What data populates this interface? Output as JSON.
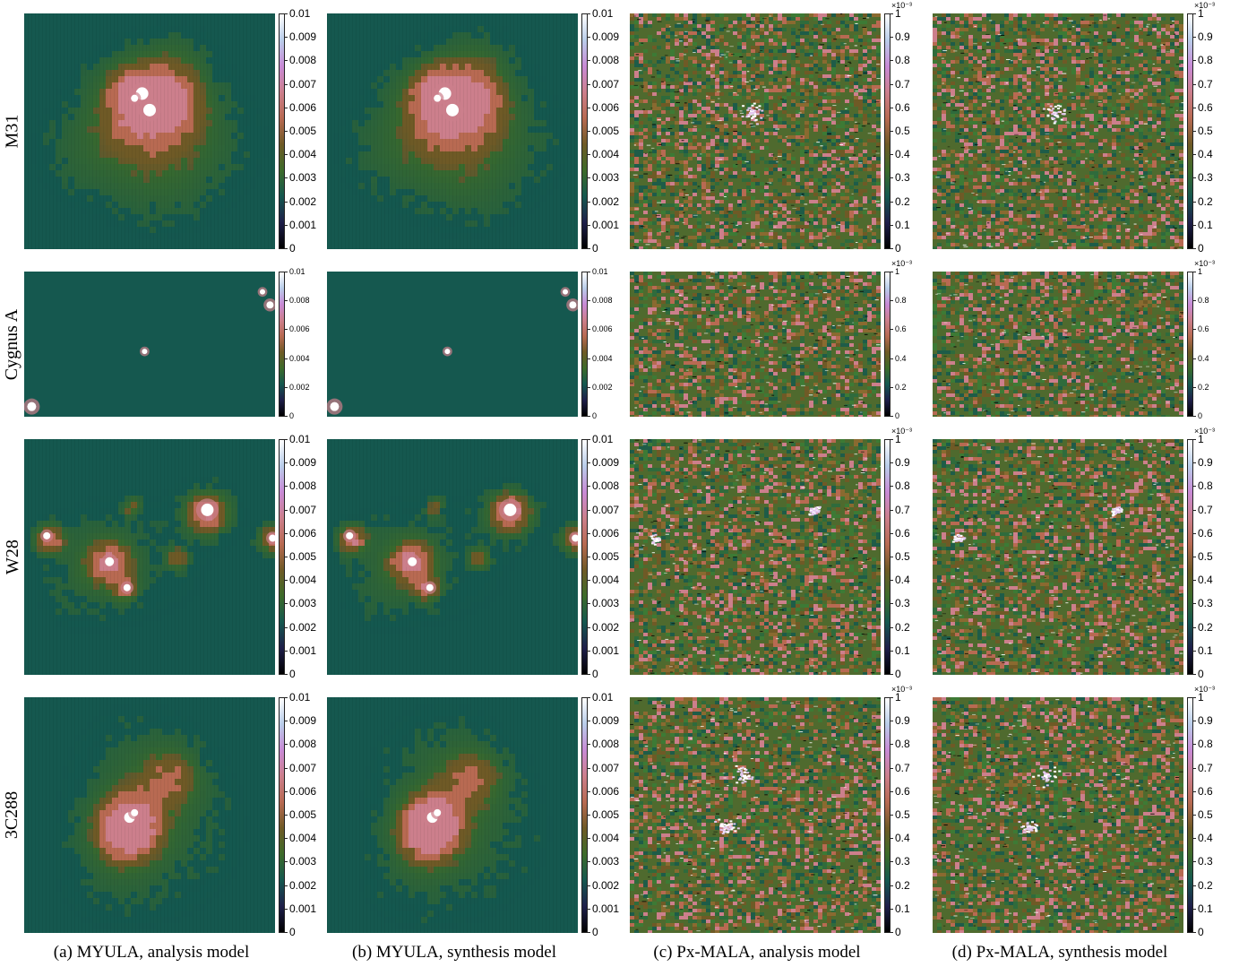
{
  "rows": [
    {
      "label": "M31",
      "maps": [
        "myula-m31",
        "myula-m31",
        "noise-m31",
        "noise-m31"
      ]
    },
    {
      "label": "Cygnus A",
      "maps": [
        "myula-cyg",
        "myula-cyg",
        "noise-plain",
        "noise-plain"
      ]
    },
    {
      "label": "W28",
      "maps": [
        "myula-w28",
        "myula-w28",
        "noise-w28",
        "noise-w28"
      ]
    },
    {
      "label": "3C288",
      "maps": [
        "myula-3c",
        "myula-3c",
        "noise-3c",
        "noise-3c"
      ]
    }
  ],
  "captions": [
    "(a) MYULA, analysis model",
    "(b) MYULA, synthesis model",
    "(c) Px-MALA, analysis model",
    "(d) Px-MALA, synthesis model"
  ],
  "colorbars": {
    "myula": [
      "0.01",
      "0.009",
      "0.008",
      "0.007",
      "0.006",
      "0.005",
      "0.004",
      "0.003",
      "0.002",
      "0.001",
      "0"
    ],
    "myula_cyg": [
      "0.01",
      "0.008",
      "0.006",
      "0.004",
      "0.002",
      "0"
    ],
    "pxmala": [
      "1",
      "0.9",
      "0.8",
      "0.7",
      "0.6",
      "0.5",
      "0.4",
      "0.3",
      "0.2",
      "0.1",
      "0"
    ],
    "pxmala_cyg": [
      "1",
      "0.8",
      "0.6",
      "0.4",
      "0.2",
      "0"
    ],
    "pxmala_multiplier": "×10⁻³"
  },
  "colors": {
    "background": "#15584f",
    "colormap": [
      "#000000",
      "#1e1f4a",
      "#15584f",
      "#3d6b2a",
      "#6f5a26",
      "#b86a52",
      "#cc7f8c",
      "#c88ad6",
      "#b9cdea",
      "#ffffff"
    ]
  }
}
